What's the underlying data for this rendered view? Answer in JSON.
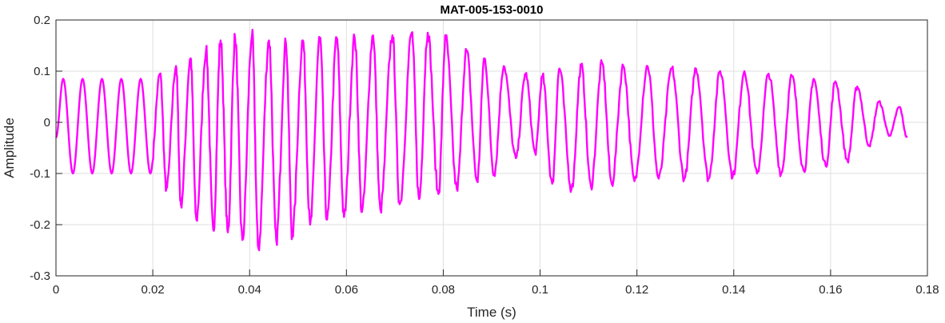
{
  "chart_data": {
    "type": "line",
    "title": "MAT-005-153-0010",
    "xlabel": "Time (s)",
    "ylabel": "Amplitude",
    "xlim": [
      0,
      0.18
    ],
    "ylim": [
      -0.3,
      0.2
    ],
    "xticks": [
      0,
      0.02,
      0.04,
      0.06,
      0.08,
      0.1,
      0.12,
      0.14,
      0.16,
      0.18
    ],
    "xtick_labels": [
      "0",
      "0.02",
      "0.04",
      "0.06",
      "0.08",
      "0.1",
      "0.12",
      "0.14",
      "0.16",
      "0.18"
    ],
    "yticks": [
      -0.3,
      -0.2,
      -0.1,
      0,
      0.1,
      0.2
    ],
    "ytick_labels": [
      "-0.3",
      "-0.2",
      "-0.1",
      "0",
      "0.1",
      "0.2"
    ],
    "grid": true,
    "line_color": "#ff00ff",
    "series": [
      {
        "x": [
          0,
          0.0015,
          0.0035,
          0.0055,
          0.0075,
          0.0095,
          0.0115,
          0.0135,
          0.0155,
          0.0175,
          0.0195,
          0.0215,
          0.0228,
          0.0248,
          0.0258,
          0.0278,
          0.029,
          0.031,
          0.0325,
          0.034,
          0.0355,
          0.037,
          0.0385,
          0.0405,
          0.0418,
          0.044,
          0.0455,
          0.0475,
          0.0488,
          0.051,
          0.0525,
          0.0545,
          0.056,
          0.058,
          0.0595,
          0.0617,
          0.0632,
          0.0655,
          0.067,
          0.0695,
          0.071,
          0.0735,
          0.075,
          0.0768,
          0.079,
          0.0805,
          0.0828,
          0.0848,
          0.087,
          0.0885,
          0.0905,
          0.0925,
          0.095,
          0.097,
          0.099,
          0.1005,
          0.1025,
          0.104,
          0.1065,
          0.1085,
          0.1105,
          0.1128,
          0.1148,
          0.1172,
          0.1195,
          0.1222,
          0.1245,
          0.1272,
          0.1298,
          0.1322,
          0.1348,
          0.1372,
          0.1398,
          0.1422,
          0.1448,
          0.1472,
          0.1498,
          0.152,
          0.1545,
          0.1565,
          0.159,
          0.161,
          0.1635,
          0.1655,
          0.168,
          0.17,
          0.1722,
          0.1742,
          0.1758
        ],
        "values": [
          -0.03,
          0.085,
          -0.1,
          0.085,
          -0.1,
          0.085,
          -0.1,
          0.085,
          -0.1,
          0.085,
          -0.1,
          0.095,
          -0.13,
          0.11,
          -0.16,
          0.125,
          -0.19,
          0.14,
          -0.21,
          0.16,
          -0.215,
          0.165,
          -0.23,
          0.17,
          -0.245,
          0.16,
          -0.23,
          0.155,
          -0.22,
          0.16,
          -0.2,
          0.165,
          -0.19,
          0.165,
          -0.185,
          0.165,
          -0.175,
          0.17,
          -0.17,
          0.17,
          -0.16,
          0.175,
          -0.15,
          0.175,
          -0.14,
          0.165,
          -0.13,
          0.14,
          -0.115,
          0.125,
          -0.1,
          0.11,
          -0.07,
          0.095,
          -0.06,
          0.09,
          -0.12,
          0.105,
          -0.13,
          0.11,
          -0.125,
          0.115,
          -0.12,
          0.11,
          -0.115,
          0.11,
          -0.11,
          0.105,
          -0.11,
          0.105,
          -0.11,
          0.1,
          -0.105,
          0.1,
          -0.1,
          0.095,
          -0.1,
          0.09,
          -0.095,
          0.085,
          -0.085,
          0.08,
          -0.075,
          0.07,
          -0.045,
          0.04,
          -0.025,
          0.03,
          -0.03
        ]
      }
    ]
  }
}
